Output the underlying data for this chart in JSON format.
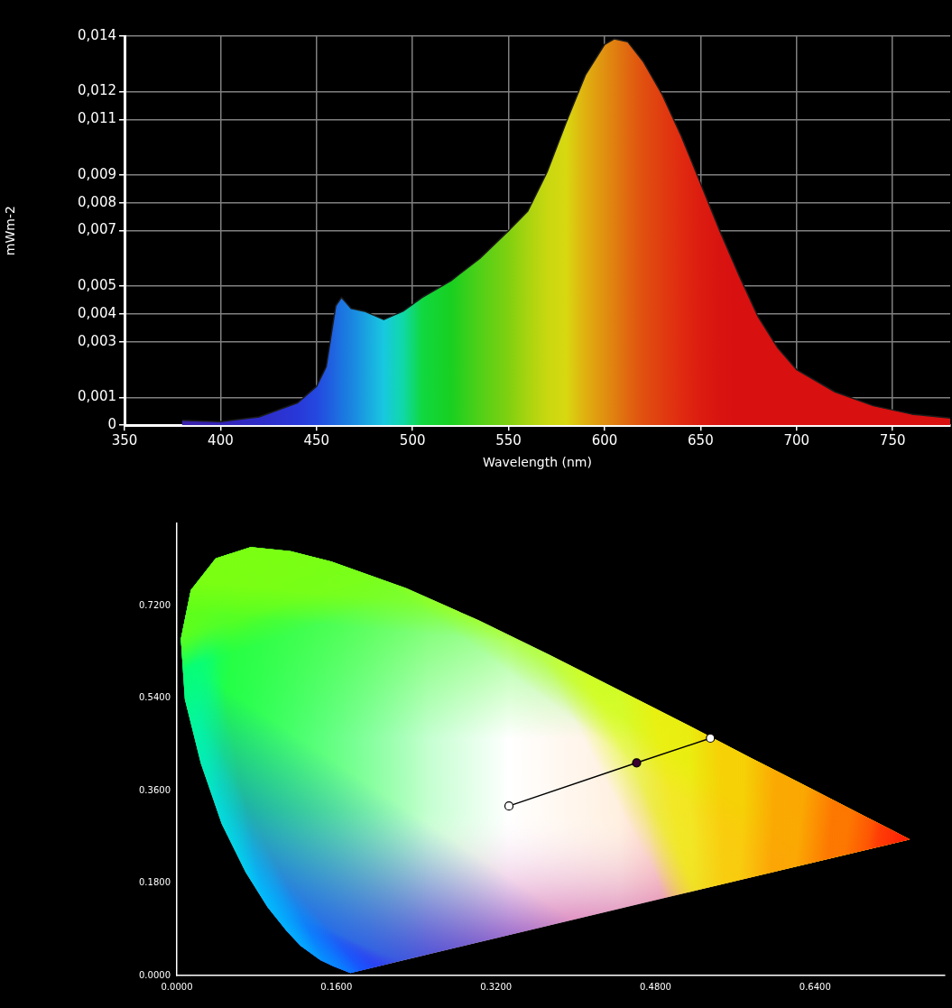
{
  "chart_data": [
    {
      "type": "area",
      "xlabel": "Wavelength (nm)",
      "ylabel": "mWm-2",
      "x": [
        380,
        400,
        420,
        440,
        450,
        455,
        460,
        463,
        468,
        475,
        485,
        495,
        505,
        520,
        535,
        550,
        560,
        570,
        580,
        590,
        600,
        605,
        612,
        620,
        630,
        640,
        650,
        660,
        670,
        680,
        690,
        700,
        720,
        740,
        760,
        780
      ],
      "series": [
        {
          "color": "#1a1a1a",
          "values": [
            0.00018,
            0.00013,
            0.0003,
            0.0008,
            0.0014,
            0.0021,
            0.0043,
            0.0046,
            0.0042,
            0.0041,
            0.0038,
            0.0041,
            0.0046,
            0.0052,
            0.006,
            0.007,
            0.0077,
            0.0091,
            0.0109,
            0.0126,
            0.0137,
            0.0139,
            0.0138,
            0.0131,
            0.0119,
            0.0104,
            0.0087,
            0.007,
            0.0054,
            0.0039,
            0.0028,
            0.002,
            0.0012,
            0.0007,
            0.0004,
            0.00026
          ],
          "colors": [
            "#3a20a8",
            "#3424b8",
            "#2e2cc8",
            "#2838d8",
            "#2448e0",
            "#2058e0",
            "#1e68e0",
            "#1c74e0",
            "#1a84e0",
            "#1aa0e0",
            "#18c8e0",
            "#10d8a8",
            "#10d840",
            "#18d020",
            "#50d018",
            "#80d010",
            "#a8d410",
            "#c8d810",
            "#d8d810",
            "#e0b010",
            "#e09010",
            "#e08010",
            "#e06810",
            "#e05010",
            "#e03c10",
            "#e02a10",
            "#dc1c10",
            "#d81410",
            "#d81010",
            "#d81010",
            "#d81010",
            "#d81010",
            "#d81010",
            "#d81010",
            "#d81010",
            "#d81010"
          ]
        }
      ],
      "xlim": [
        350,
        780
      ],
      "xticks": [
        350,
        400,
        450,
        500,
        550,
        600,
        650,
        700,
        750
      ],
      "ylim": [
        0,
        0.014
      ],
      "yticks": [
        0,
        {
          "value": 0.001,
          "label": "0,001"
        },
        {
          "value": 0.003,
          "label": "0,003"
        },
        {
          "value": 0.004,
          "label": "0,004"
        },
        {
          "value": 0.005,
          "label": "0,005"
        },
        {
          "value": 0.007,
          "label": "0,007"
        },
        {
          "value": 0.008,
          "label": "0,008"
        },
        {
          "value": 0.009,
          "label": "0,009"
        },
        {
          "value": 0.011,
          "label": "0,011"
        },
        {
          "value": 0.012,
          "label": "0,012"
        },
        {
          "value": 0.014,
          "label": "0,014"
        }
      ],
      "grid": true
    },
    {
      "type": "scatter",
      "xlim": [
        0,
        0.77
      ],
      "xticks": [
        {
          "value": 0,
          "label": "0.0000"
        },
        {
          "value": 0.16,
          "label": "0.1600"
        },
        {
          "value": 0.32,
          "label": "0.3200"
        },
        {
          "value": 0.48,
          "label": "0.4800"
        },
        {
          "value": 0.64,
          "label": "0.6400"
        }
      ],
      "ylim": [
        0,
        0.88
      ],
      "yticks": [
        {
          "value": 0,
          "label": "0.0000"
        },
        {
          "value": 0.18,
          "label": "0.1800"
        },
        {
          "value": 0.36,
          "label": "0.3600"
        },
        {
          "value": 0.54,
          "label": "0.5400"
        },
        {
          "value": 0.72,
          "label": "0.7200"
        }
      ],
      "series": [
        {
          "type": "area",
          "x": [
            0.174,
            0.157,
            0.144,
            0.124,
            0.11,
            0.091,
            0.069,
            0.045,
            0.024,
            0.008,
            0.004,
            0.014,
            0.039,
            0.074,
            0.114,
            0.155,
            0.23,
            0.302,
            0.373,
            0.444,
            0.513,
            0.575,
            0.627,
            0.692,
            0.719,
            0.735
          ],
          "values": [
            0.005,
            0.018,
            0.03,
            0.058,
            0.087,
            0.133,
            0.201,
            0.295,
            0.413,
            0.538,
            0.655,
            0.75,
            0.812,
            0.834,
            0.826,
            0.806,
            0.754,
            0.692,
            0.625,
            0.555,
            0.487,
            0.424,
            0.373,
            0.308,
            0.281,
            0.265
          ],
          "colors": [
            "#6000ff",
            "#3010ff",
            "#2030ff",
            "#1060ff",
            "#0080ff",
            "#00a0ff",
            "#00c8ff",
            "#00f0f0",
            "#00ffb0",
            "#00ff70",
            "#10ff40",
            "#20ff20",
            "#30ff20",
            "#40ff20",
            "#50ff20",
            "#60ff18",
            "#80ff10",
            "#a0ff08",
            "#c8ff00",
            "#f0ff00",
            "#ffd800",
            "#ffa000",
            "#ff7000",
            "#ff3000",
            "#ff1010",
            "#ff0000"
          ]
        },
        {
          "type": "line",
          "x": [
            0.333,
            0.461,
            0.535
          ],
          "values": [
            0.33,
            0.414,
            0.462
          ],
          "color": "#000000",
          "colors": [
            "#ffffff",
            "#3a0030",
            "#ffffff"
          ],
          "marker": "circle"
        }
      ],
      "grid": false
    }
  ]
}
